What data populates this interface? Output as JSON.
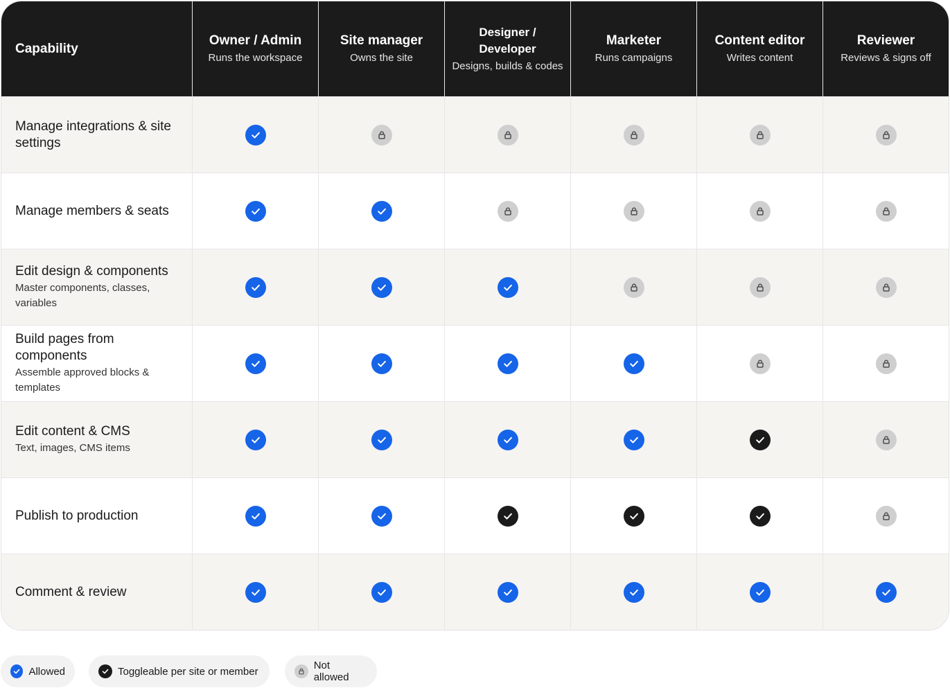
{
  "header": {
    "capability_label": "Capability",
    "roles": [
      {
        "title": "Owner / Admin",
        "subtitle": "Runs the workspace"
      },
      {
        "title": "Site manager",
        "subtitle": "Owns the site"
      },
      {
        "title": "Designer / Developer",
        "subtitle": "Designs, builds & codes"
      },
      {
        "title": "Marketer",
        "subtitle": "Runs campaigns"
      },
      {
        "title": "Content editor",
        "subtitle": "Writes content"
      },
      {
        "title": "Reviewer",
        "subtitle": "Reviews & signs off"
      }
    ]
  },
  "rows": [
    {
      "title": "Manage integrations & site settings",
      "subtitle": "",
      "access": [
        "allowed",
        "locked",
        "locked",
        "locked",
        "locked",
        "locked"
      ]
    },
    {
      "title": "Manage members & seats",
      "subtitle": "",
      "access": [
        "allowed",
        "allowed",
        "locked",
        "locked",
        "locked",
        "locked"
      ]
    },
    {
      "title": "Edit design & components",
      "subtitle": "Master components, classes, variables",
      "access": [
        "allowed",
        "allowed",
        "allowed",
        "locked",
        "locked",
        "locked"
      ]
    },
    {
      "title": "Build pages from components",
      "subtitle": "Assemble approved blocks & templates",
      "access": [
        "allowed",
        "allowed",
        "allowed",
        "allowed",
        "locked",
        "locked"
      ]
    },
    {
      "title": "Edit content & CMS",
      "subtitle": "Text, images, CMS items",
      "access": [
        "allowed",
        "allowed",
        "allowed",
        "allowed",
        "toggle",
        "locked"
      ]
    },
    {
      "title": "Publish to production",
      "subtitle": "",
      "access": [
        "allowed",
        "allowed",
        "toggle",
        "toggle",
        "toggle",
        "locked"
      ]
    },
    {
      "title": "Comment & review",
      "subtitle": "",
      "access": [
        "allowed",
        "allowed",
        "allowed",
        "allowed",
        "allowed",
        "allowed"
      ]
    }
  ],
  "legend": {
    "allowed": "Allowed",
    "toggle": "Toggleable per site or member",
    "locked": "Not allowed"
  },
  "colors": {
    "allowed": "#1664e8",
    "toggle": "#1b1b1b",
    "locked": "#cfcfcf",
    "header_bg": "#1b1b1b",
    "row_shade": "#f5f4f1"
  }
}
